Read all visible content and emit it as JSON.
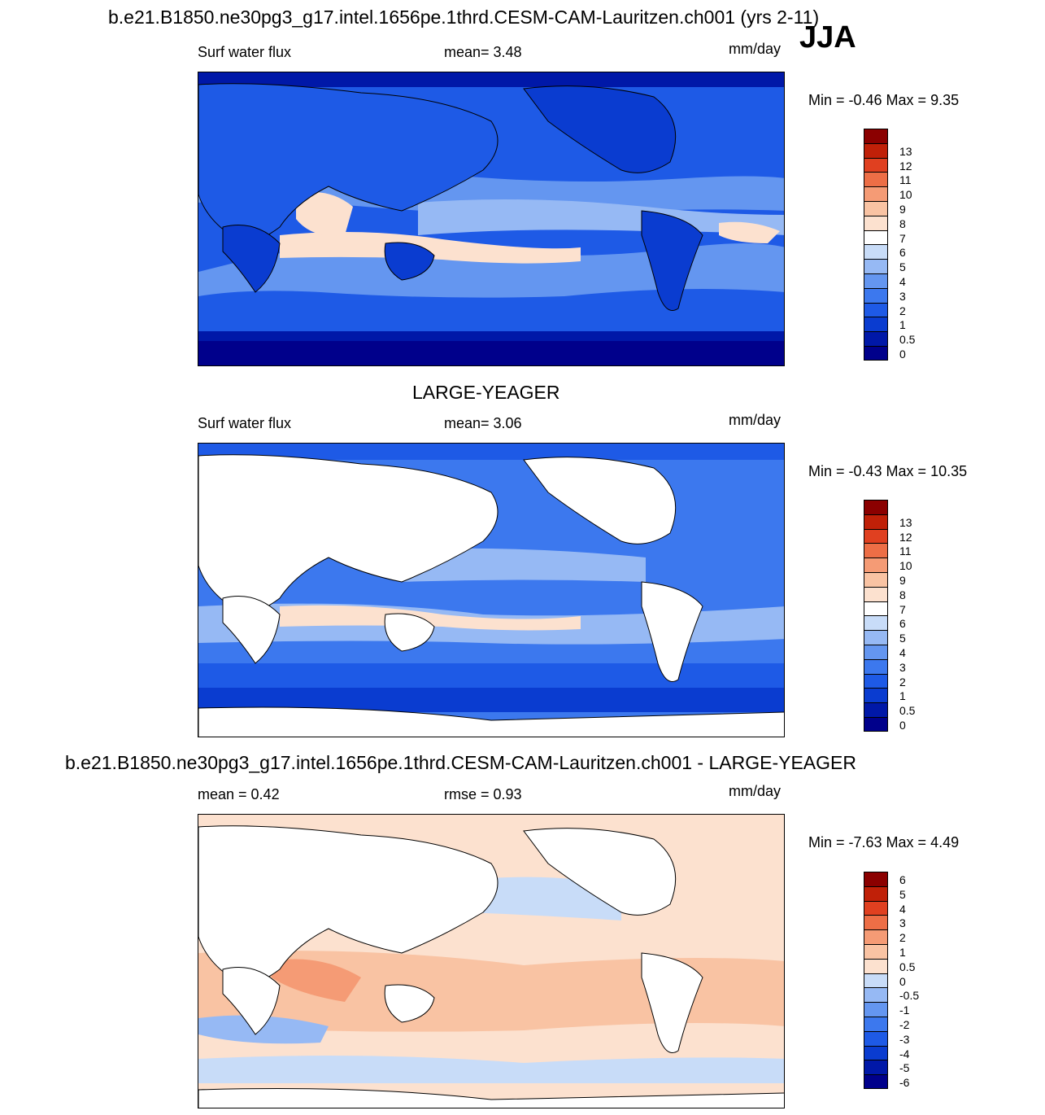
{
  "figure": {
    "title": "b.e21.B1850.ne30pg3_g17.intel.1656pe.1thrd.CESM-CAM-Lauritzen.ch001 (yrs 2-11)",
    "season": "JJA"
  },
  "panels": [
    {
      "title": "",
      "left_label": "Surf water flux",
      "center_label": "mean=   3.48",
      "units": "mm/day",
      "minmax": "Min =  -0.46 Max =   9.35",
      "colorbar": {
        "levels": [
          "0",
          "0.5",
          "1",
          "2",
          "3",
          "4",
          "5",
          "6",
          "7",
          "8",
          "9",
          "10",
          "11",
          "12",
          "13"
        ],
        "colors": [
          "#00008b",
          "#0018a8",
          "#0a3cd0",
          "#1e5ae6",
          "#3c78ee",
          "#6496f0",
          "#96b9f4",
          "#c8dcf8",
          "#ffffff",
          "#fce1cf",
          "#f9c3a3",
          "#f59b75",
          "#ed6e46",
          "#e04020",
          "#c02008",
          "#8b0000"
        ]
      }
    },
    {
      "title": "LARGE-YEAGER",
      "left_label": "Surf water flux",
      "center_label": "mean=   3.06",
      "units": "mm/day",
      "minmax": "Min =  -0.43 Max =  10.35",
      "colorbar": {
        "levels": [
          "0",
          "0.5",
          "1",
          "2",
          "3",
          "4",
          "5",
          "6",
          "7",
          "8",
          "9",
          "10",
          "11",
          "12",
          "13"
        ],
        "colors": [
          "#00008b",
          "#0018a8",
          "#0a3cd0",
          "#1e5ae6",
          "#3c78ee",
          "#6496f0",
          "#96b9f4",
          "#c8dcf8",
          "#ffffff",
          "#fce1cf",
          "#f9c3a3",
          "#f59b75",
          "#ed6e46",
          "#e04020",
          "#c02008",
          "#8b0000"
        ]
      }
    },
    {
      "title": "b.e21.B1850.ne30pg3_g17.intel.1656pe.1thrd.CESM-CAM-Lauritzen.ch001 - LARGE-YEAGER",
      "left_label": "mean =   0.42",
      "center_label": "rmse =   0.93",
      "units": "mm/day",
      "minmax": "Min =  -7.63 Max =   4.49",
      "colorbar": {
        "levels": [
          "-6",
          "-5",
          "-4",
          "-3",
          "-2",
          "-1",
          "-0.5",
          "0",
          "0.5",
          "1",
          "2",
          "3",
          "4",
          "5",
          "6"
        ],
        "colors": [
          "#00008b",
          "#0018a8",
          "#0a3cd0",
          "#1e5ae6",
          "#3c78ee",
          "#6496f0",
          "#96b9f4",
          "#c8dcf8",
          "#fce1cf",
          "#f9c3a3",
          "#f59b75",
          "#ed6e46",
          "#e04020",
          "#c02008",
          "#8b0000"
        ]
      }
    }
  ]
}
